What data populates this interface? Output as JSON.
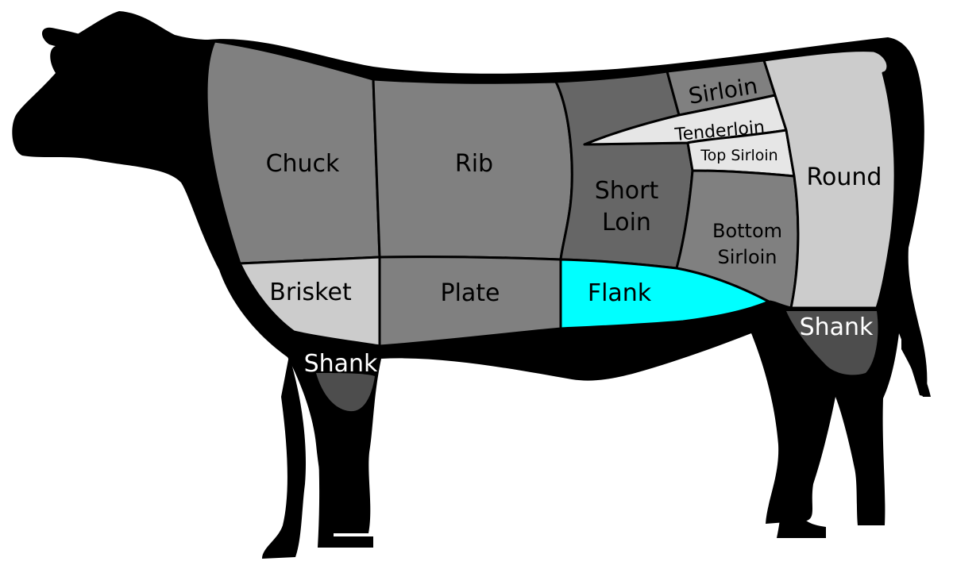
{
  "diagram": {
    "colors": {
      "silhouette": "#000000",
      "dark_cut": "#666666",
      "mid_cut": "#808080",
      "light_cut": "#cccccc",
      "pale_cut": "#e6e6e6",
      "shank": "#4d4d4d",
      "highlight": "#00ffff"
    },
    "highlighted_cut": "Flank",
    "cuts": {
      "chuck": "Chuck",
      "rib": "Rib",
      "short_loin_line1": "Short",
      "short_loin_line2": "Loin",
      "sirloin": "Sirloin",
      "tenderloin": "Tenderloin",
      "top_sirloin": "Top Sirloin",
      "bottom_sirloin_line1": "Bottom",
      "bottom_sirloin_line2": "Sirloin",
      "round": "Round",
      "brisket": "Brisket",
      "plate": "Plate",
      "flank": "Flank",
      "fore_shank": "Shank",
      "hind_shank": "Shank"
    }
  }
}
